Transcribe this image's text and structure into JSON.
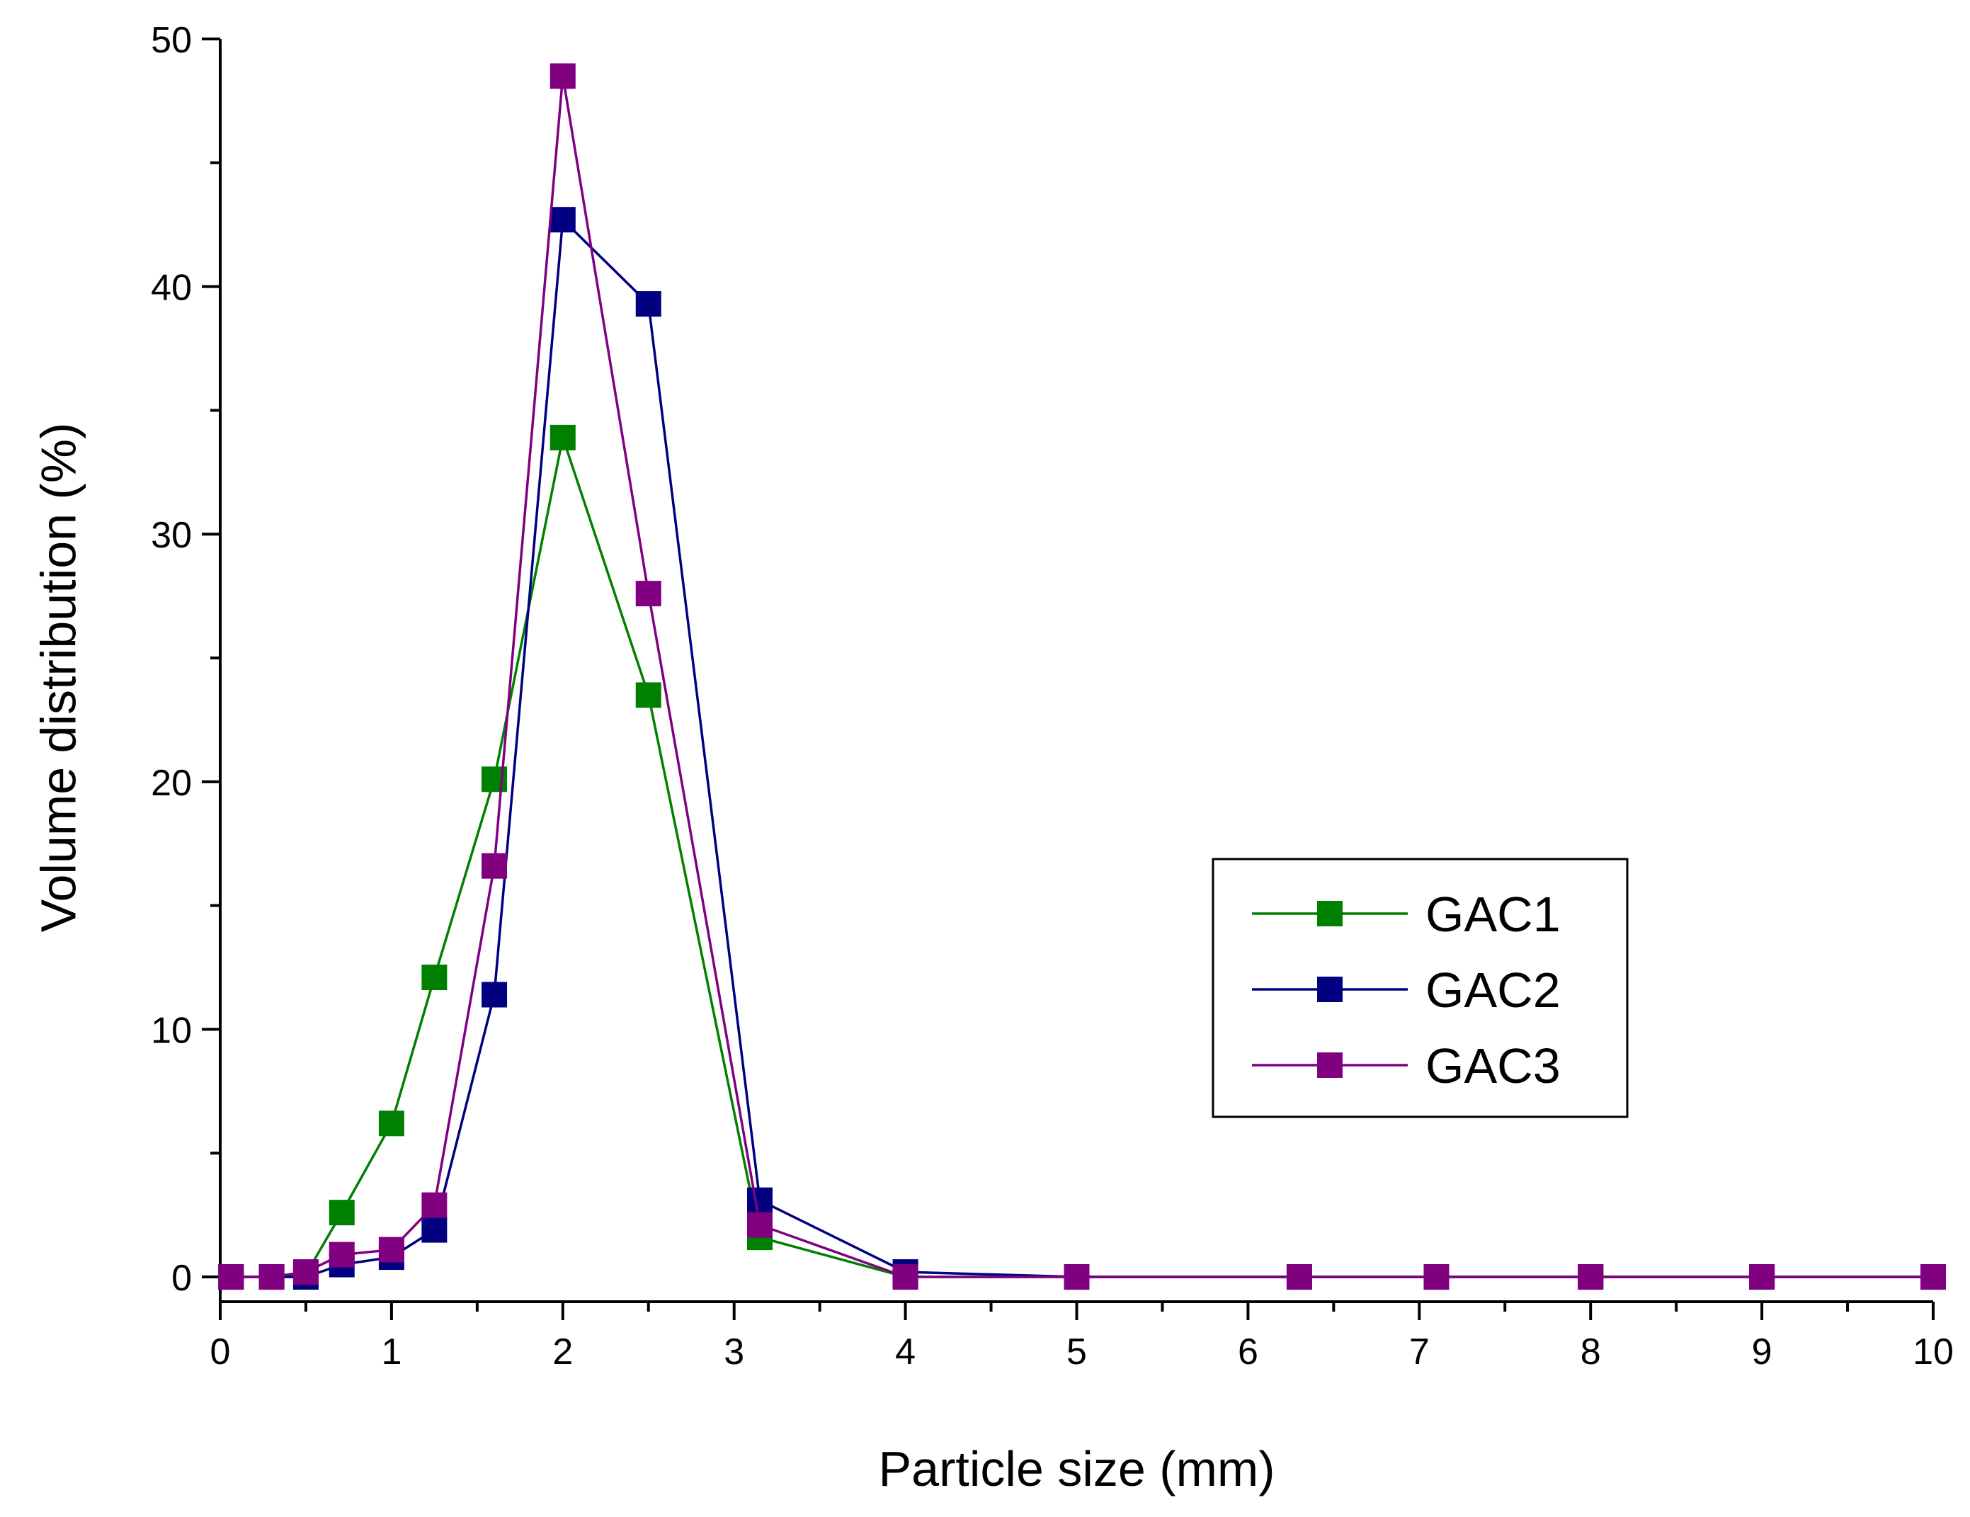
{
  "chart_data": {
    "type": "line",
    "title": "",
    "xlabel": "Particle size (mm)",
    "ylabel": "Volume distribution (%)",
    "xlim": [
      0,
      10
    ],
    "ylim": [
      -1,
      50
    ],
    "xticks": [
      0,
      1,
      2,
      3,
      4,
      5,
      6,
      7,
      8,
      9,
      10
    ],
    "yticks": [
      0,
      10,
      20,
      30,
      40,
      50
    ],
    "xtick_labels": [
      "0",
      "1",
      "2",
      "3",
      "4",
      "5",
      "6",
      "7",
      "8",
      "9",
      "10"
    ],
    "ytick_labels": [
      "0",
      "10",
      "20",
      "30",
      "40",
      "50"
    ],
    "grid": false,
    "legend_position": "right-middle",
    "marker": "square",
    "series": [
      {
        "name": "GAC1",
        "color": "#008000",
        "x": [
          0.063,
          0.3,
          0.5,
          0.71,
          1.0,
          1.25,
          1.6,
          2.0,
          2.5,
          3.15,
          4.0,
          5.0,
          6.3,
          7.1,
          8.0,
          9.0,
          10.0
        ],
        "y": [
          0.0,
          0.0,
          0.1,
          2.6,
          6.2,
          12.1,
          20.1,
          33.9,
          23.5,
          1.6,
          0.0,
          0.0,
          0.0,
          0.0,
          0.0,
          0.0,
          0.0
        ]
      },
      {
        "name": "GAC2",
        "color": "#000080",
        "x": [
          0.063,
          0.3,
          0.5,
          0.71,
          1.0,
          1.25,
          1.6,
          2.0,
          2.5,
          3.15,
          4.0,
          5.0,
          6.3,
          7.1,
          8.0,
          9.0,
          10.0
        ],
        "y": [
          0.0,
          0.0,
          0.0,
          0.5,
          0.8,
          1.9,
          11.4,
          42.7,
          39.3,
          3.1,
          0.2,
          0.0,
          0.0,
          0.0,
          0.0,
          0.0,
          0.0
        ]
      },
      {
        "name": "GAC3",
        "color": "#800080",
        "x": [
          0.063,
          0.3,
          0.5,
          0.71,
          1.0,
          1.25,
          1.6,
          2.0,
          2.5,
          3.15,
          4.0,
          5.0,
          6.3,
          7.1,
          8.0,
          9.0,
          10.0
        ],
        "y": [
          0.0,
          0.0,
          0.2,
          0.9,
          1.1,
          2.9,
          16.6,
          48.5,
          27.6,
          2.1,
          0.0,
          0.0,
          0.0,
          0.0,
          0.0,
          0.0,
          0.0
        ]
      }
    ]
  }
}
